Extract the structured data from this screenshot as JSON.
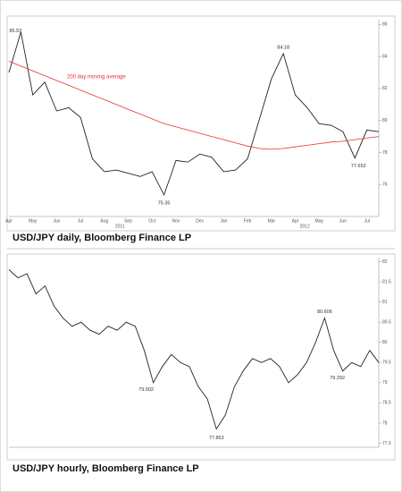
{
  "chart_data": [
    {
      "type": "line",
      "caption": "USD/JPY daily, Bloomberg Finance LP",
      "categories": [
        "Apr",
        null,
        "May",
        null,
        "Jun",
        null,
        "Jul",
        null,
        "Aug",
        null,
        "Sep",
        null,
        "Oct",
        null,
        "Nov",
        null,
        "Dec",
        null,
        "Jan",
        null,
        "Feb",
        null,
        "Mar",
        null,
        "Apr",
        null,
        "May",
        null,
        "Jun",
        null,
        "Jul",
        null
      ],
      "series": [
        {
          "color": "#222222",
          "values": [
            83.0,
            85.53,
            81.6,
            82.4,
            80.6,
            80.8,
            80.2,
            77.6,
            76.8,
            76.9,
            76.7,
            76.5,
            76.8,
            75.35,
            77.5,
            77.4,
            77.9,
            77.7,
            76.8,
            76.9,
            77.6,
            80.1,
            82.6,
            84.18,
            81.6,
            80.8,
            79.8,
            79.7,
            79.3,
            77.652,
            79.4,
            79.3
          ]
        },
        {
          "name": "200 day moving average",
          "color": "#e8312f",
          "values": [
            83.7,
            83.4,
            83.1,
            82.8,
            82.5,
            82.2,
            81.9,
            81.6,
            81.3,
            81.0,
            80.7,
            80.4,
            80.1,
            79.8,
            79.6,
            79.4,
            79.2,
            79.0,
            78.8,
            78.6,
            78.4,
            78.25,
            78.2,
            78.25,
            78.35,
            78.45,
            78.55,
            78.65,
            78.7,
            78.8,
            78.9,
            79.0
          ]
        }
      ],
      "annotations": [
        "85.53",
        "84.18",
        "75.35",
        "77.652"
      ],
      "years": [
        "2011",
        "2012"
      ],
      "ylim": [
        74,
        86.3
      ],
      "yticks": [
        76,
        78,
        80,
        82,
        84,
        86
      ]
    },
    {
      "type": "line",
      "caption": "USD/JPY hourly, Bloomberg Finance LP",
      "series": [
        {
          "color": "#222222",
          "values": [
            81.8,
            81.6,
            81.7,
            81.2,
            81.4,
            80.9,
            80.6,
            80.4,
            80.5,
            80.3,
            80.2,
            80.4,
            80.3,
            80.5,
            80.4,
            79.8,
            79.002,
            79.4,
            79.7,
            79.5,
            79.4,
            78.9,
            78.6,
            77.853,
            78.2,
            78.9,
            79.3,
            79.6,
            79.5,
            79.6,
            79.4,
            79.0,
            79.2,
            79.5,
            80.0,
            80.606,
            79.8,
            79.292,
            79.5,
            79.4,
            79.8,
            79.5
          ]
        }
      ],
      "annotations": [
        "80.606",
        "79.002",
        "79.292",
        "77.853"
      ],
      "ylim": [
        77.4,
        82.1
      ],
      "yticks": [
        77.5,
        78,
        78.5,
        79,
        79.5,
        80,
        80.5,
        81,
        81.5,
        82
      ]
    }
  ]
}
